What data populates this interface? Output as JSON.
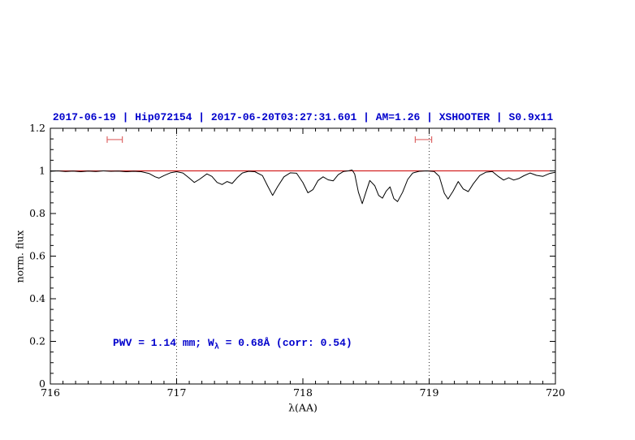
{
  "title": "2017-06-19 | Hip072154 | 2017-06-20T03:27:31.601 | AM=1.26 | XSHOOTER | S0.9x11",
  "annotation": {
    "prefix": "PWV = 1.14 mm; W",
    "subscript": "λ",
    "suffix": " = 0.68Å (corr: 0.54)"
  },
  "colors": {
    "title_text": "#0000cc",
    "annotation_text": "#0000cc",
    "spectrum": "#000000",
    "continuum_fit": "#cc0000",
    "range_markers": "#dd6666",
    "axis": "#000000",
    "background": "#ffffff"
  },
  "chart_data": {
    "type": "line",
    "title": "2017-06-19 | Hip072154 | 2017-06-20T03:27:31.601 | AM=1.26 | XSHOOTER | S0.9x11",
    "xlabel": "λ(AA)",
    "ylabel": "norm. flux",
    "xlim": [
      716,
      720
    ],
    "ylim": [
      0,
      1.2
    ],
    "grid": false,
    "legend": "none",
    "x_ticks": [
      {
        "v": 716,
        "label": "716"
      },
      {
        "v": 717,
        "label": "717"
      },
      {
        "v": 718,
        "label": "718"
      },
      {
        "v": 719,
        "label": "719"
      },
      {
        "v": 720,
        "label": "720"
      }
    ],
    "y_ticks": [
      {
        "v": 0,
        "label": "0"
      },
      {
        "v": 0.2,
        "label": "0.2"
      },
      {
        "v": 0.4,
        "label": "0.4"
      },
      {
        "v": 0.6,
        "label": "0.6"
      },
      {
        "v": 0.8,
        "label": "0.8"
      },
      {
        "v": 1,
        "label": "1"
      },
      {
        "v": 1.2,
        "label": "1.2"
      }
    ],
    "x_minor_step": 0.1,
    "y_minor_step": 0.05,
    "vlines": [
      717,
      719
    ],
    "series": [
      {
        "name": "continuum-fit",
        "color": "#cc0000",
        "points": [
          [
            716.0,
            1.0
          ],
          [
            720.0,
            1.0
          ]
        ]
      },
      {
        "name": "spectrum",
        "color": "#000000",
        "points": [
          [
            716.0,
            0.998
          ],
          [
            716.06,
            1.0
          ],
          [
            716.12,
            0.997
          ],
          [
            716.18,
            0.999
          ],
          [
            716.24,
            0.996
          ],
          [
            716.3,
            0.999
          ],
          [
            716.36,
            0.997
          ],
          [
            716.42,
            1.0
          ],
          [
            716.48,
            0.998
          ],
          [
            716.54,
            0.999
          ],
          [
            716.6,
            0.996
          ],
          [
            716.66,
            0.998
          ],
          [
            716.72,
            0.996
          ],
          [
            716.78,
            0.988
          ],
          [
            716.83,
            0.972
          ],
          [
            716.86,
            0.966
          ],
          [
            716.9,
            0.978
          ],
          [
            716.95,
            0.991
          ],
          [
            717.0,
            0.996
          ],
          [
            717.05,
            0.99
          ],
          [
            717.1,
            0.966
          ],
          [
            717.14,
            0.946
          ],
          [
            717.18,
            0.96
          ],
          [
            717.24,
            0.986
          ],
          [
            717.28,
            0.974
          ],
          [
            717.32,
            0.946
          ],
          [
            717.36,
            0.936
          ],
          [
            717.4,
            0.95
          ],
          [
            717.44,
            0.941
          ],
          [
            717.48,
            0.968
          ],
          [
            717.52,
            0.99
          ],
          [
            717.57,
            0.998
          ],
          [
            717.62,
            0.996
          ],
          [
            717.68,
            0.978
          ],
          [
            717.72,
            0.93
          ],
          [
            717.76,
            0.885
          ],
          [
            717.8,
            0.926
          ],
          [
            717.85,
            0.972
          ],
          [
            717.9,
            0.991
          ],
          [
            717.95,
            0.989
          ],
          [
            718.0,
            0.945
          ],
          [
            718.04,
            0.897
          ],
          [
            718.08,
            0.912
          ],
          [
            718.12,
            0.955
          ],
          [
            718.16,
            0.972
          ],
          [
            718.2,
            0.958
          ],
          [
            718.24,
            0.953
          ],
          [
            718.28,
            0.982
          ],
          [
            718.32,
            0.997
          ],
          [
            718.36,
            1.0
          ],
          [
            718.39,
            1.004
          ],
          [
            718.41,
            0.985
          ],
          [
            718.44,
            0.9
          ],
          [
            718.47,
            0.846
          ],
          [
            718.5,
            0.902
          ],
          [
            718.53,
            0.955
          ],
          [
            718.57,
            0.93
          ],
          [
            718.6,
            0.885
          ],
          [
            718.63,
            0.872
          ],
          [
            718.66,
            0.905
          ],
          [
            718.69,
            0.925
          ],
          [
            718.72,
            0.87
          ],
          [
            718.75,
            0.856
          ],
          [
            718.79,
            0.9
          ],
          [
            718.83,
            0.96
          ],
          [
            718.87,
            0.99
          ],
          [
            718.92,
            0.998
          ],
          [
            718.98,
            1.0
          ],
          [
            719.04,
            0.997
          ],
          [
            719.08,
            0.975
          ],
          [
            719.12,
            0.895
          ],
          [
            719.15,
            0.868
          ],
          [
            719.19,
            0.905
          ],
          [
            719.23,
            0.95
          ],
          [
            719.27,
            0.915
          ],
          [
            719.31,
            0.903
          ],
          [
            719.35,
            0.94
          ],
          [
            719.4,
            0.978
          ],
          [
            719.45,
            0.994
          ],
          [
            719.5,
            0.997
          ],
          [
            719.55,
            0.973
          ],
          [
            719.59,
            0.957
          ],
          [
            719.63,
            0.968
          ],
          [
            719.67,
            0.957
          ],
          [
            719.71,
            0.964
          ],
          [
            719.75,
            0.977
          ],
          [
            719.8,
            0.99
          ],
          [
            719.85,
            0.979
          ],
          [
            719.9,
            0.974
          ],
          [
            719.95,
            0.987
          ],
          [
            720.0,
            0.994
          ]
        ]
      }
    ],
    "range_markers": [
      {
        "x1": 716.45,
        "x2": 716.57,
        "y": 1.147
      },
      {
        "x1": 718.89,
        "x2": 719.02,
        "y": 1.147
      }
    ]
  }
}
